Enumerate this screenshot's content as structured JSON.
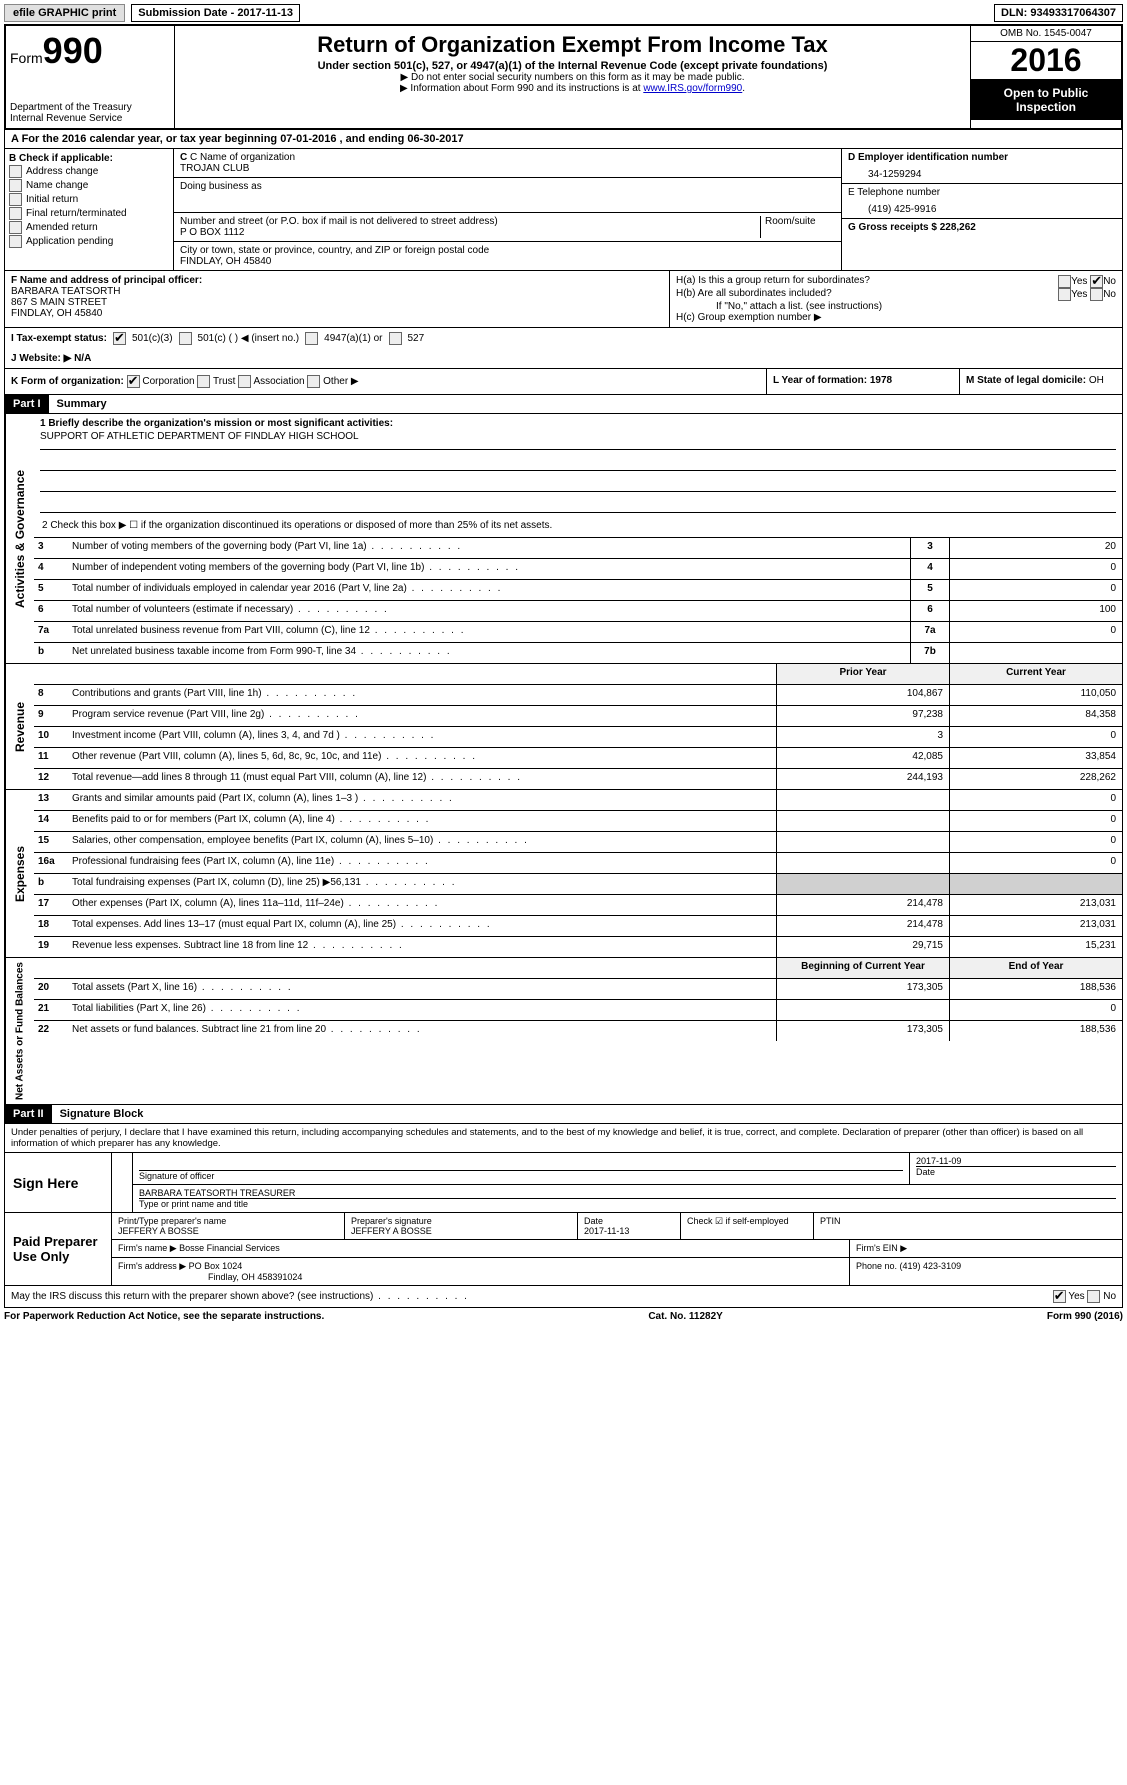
{
  "top": {
    "efile_label": "efile GRAPHIC print",
    "submission_label": "Submission Date - 2017-11-13",
    "dln": "DLN: 93493317064307"
  },
  "header": {
    "form_label": "Form",
    "form_number": "990",
    "dept": "Department of the Treasury",
    "irs": "Internal Revenue Service",
    "title": "Return of Organization Exempt From Income Tax",
    "subtitle": "Under section 501(c), 527, or 4947(a)(1) of the Internal Revenue Code (except private foundations)",
    "note1": "▶ Do not enter social security numbers on this form as it may be made public.",
    "note2_pre": "▶ Information about Form 990 and its instructions is at ",
    "note2_link": "www.IRS.gov/form990",
    "omb": "OMB No. 1545-0047",
    "year": "2016",
    "inspection1": "Open to Public",
    "inspection2": "Inspection"
  },
  "section_a": "A  For the 2016 calendar year, or tax year beginning 07-01-2016   , and ending 06-30-2017",
  "section_b": {
    "label": "B Check if applicable:",
    "items": [
      "Address change",
      "Name change",
      "Initial return",
      "Final return/terminated",
      "Amended return",
      "Application pending"
    ]
  },
  "section_c": {
    "name_label": "C Name of organization",
    "name": "TROJAN CLUB",
    "dba_label": "Doing business as",
    "street_label": "Number and street (or P.O. box if mail is not delivered to street address)",
    "room_label": "Room/suite",
    "street": "P O BOX 1112",
    "city_label": "City or town, state or province, country, and ZIP or foreign postal code",
    "city": "FINDLAY, OH 45840"
  },
  "section_d": {
    "ein_label": "D Employer identification number",
    "ein": "34-1259294",
    "phone_label": "E Telephone number",
    "phone": "(419) 425-9916",
    "gross_label": "G Gross receipts $ 228,262"
  },
  "section_f": {
    "label": "F  Name and address of principal officer:",
    "name": "BARBARA TEATSORTH",
    "street": "867 S MAIN STREET",
    "city": "FINDLAY, OH  45840"
  },
  "section_h": {
    "ha": "H(a)  Is this a group return for subordinates?",
    "hb": "H(b)  Are all subordinates included?",
    "hb_note": "If \"No,\" attach a list. (see instructions)",
    "hc": "H(c)  Group exemption number ▶"
  },
  "section_i": {
    "label": "I  Tax-exempt status:",
    "opts": [
      "501(c)(3)",
      "501(c) (  ) ◀ (insert no.)",
      "4947(a)(1) or",
      "527"
    ]
  },
  "section_j": "J  Website: ▶  N/A",
  "section_k": {
    "label": "K Form of organization:",
    "opts": [
      "Corporation",
      "Trust",
      "Association",
      "Other ▶"
    ]
  },
  "section_l": "L Year of formation: 1978",
  "section_m": {
    "label": "M State of legal domicile:",
    "val": "OH"
  },
  "part1": {
    "header": "Part I",
    "title": "Summary",
    "line1_label": "1 Briefly describe the organization's mission or most significant activities:",
    "mission": "SUPPORT OF ATHLETIC DEPARTMENT OF FINDLAY HIGH SCHOOL",
    "line2": "2  Check this box ▶ ☐  if the organization discontinued its operations or disposed of more than 25% of its net assets.",
    "governance_rows": [
      {
        "n": "3",
        "d": "Number of voting members of the governing body (Part VI, line 1a)",
        "rn": "3",
        "v": "20"
      },
      {
        "n": "4",
        "d": "Number of independent voting members of the governing body (Part VI, line 1b)",
        "rn": "4",
        "v": "0"
      },
      {
        "n": "5",
        "d": "Total number of individuals employed in calendar year 2016 (Part V, line 2a)",
        "rn": "5",
        "v": "0"
      },
      {
        "n": "6",
        "d": "Total number of volunteers (estimate if necessary)",
        "rn": "6",
        "v": "100"
      },
      {
        "n": "7a",
        "d": "Total unrelated business revenue from Part VIII, column (C), line 12",
        "rn": "7a",
        "v": "0"
      },
      {
        "n": "b",
        "d": "Net unrelated business taxable income from Form 990-T, line 34",
        "rn": "7b",
        "v": ""
      }
    ],
    "col_headers": {
      "prior": "Prior Year",
      "current": "Current Year"
    },
    "revenue_rows": [
      {
        "n": "8",
        "d": "Contributions and grants (Part VIII, line 1h)",
        "p": "104,867",
        "c": "110,050"
      },
      {
        "n": "9",
        "d": "Program service revenue (Part VIII, line 2g)",
        "p": "97,238",
        "c": "84,358"
      },
      {
        "n": "10",
        "d": "Investment income (Part VIII, column (A), lines 3, 4, and 7d )",
        "p": "3",
        "c": "0"
      },
      {
        "n": "11",
        "d": "Other revenue (Part VIII, column (A), lines 5, 6d, 8c, 9c, 10c, and 11e)",
        "p": "42,085",
        "c": "33,854"
      },
      {
        "n": "12",
        "d": "Total revenue—add lines 8 through 11 (must equal Part VIII, column (A), line 12)",
        "p": "244,193",
        "c": "228,262"
      }
    ],
    "expense_rows": [
      {
        "n": "13",
        "d": "Grants and similar amounts paid (Part IX, column (A), lines 1–3 )",
        "p": "",
        "c": "0"
      },
      {
        "n": "14",
        "d": "Benefits paid to or for members (Part IX, column (A), line 4)",
        "p": "",
        "c": "0"
      },
      {
        "n": "15",
        "d": "Salaries, other compensation, employee benefits (Part IX, column (A), lines 5–10)",
        "p": "",
        "c": "0"
      },
      {
        "n": "16a",
        "d": "Professional fundraising fees (Part IX, column (A), line 11e)",
        "p": "",
        "c": "0"
      },
      {
        "n": "b",
        "d": "Total fundraising expenses (Part IX, column (D), line 25) ▶56,131",
        "p": "grey",
        "c": "grey"
      },
      {
        "n": "17",
        "d": "Other expenses (Part IX, column (A), lines 11a–11d, 11f–24e)",
        "p": "214,478",
        "c": "213,031"
      },
      {
        "n": "18",
        "d": "Total expenses. Add lines 13–17 (must equal Part IX, column (A), line 25)",
        "p": "214,478",
        "c": "213,031"
      },
      {
        "n": "19",
        "d": "Revenue less expenses. Subtract line 18 from line 12",
        "p": "29,715",
        "c": "15,231"
      }
    ],
    "net_headers": {
      "begin": "Beginning of Current Year",
      "end": "End of Year"
    },
    "net_rows": [
      {
        "n": "20",
        "d": "Total assets (Part X, line 16)",
        "p": "173,305",
        "c": "188,536"
      },
      {
        "n": "21",
        "d": "Total liabilities (Part X, line 26)",
        "p": "",
        "c": "0"
      },
      {
        "n": "22",
        "d": "Net assets or fund balances. Subtract line 21 from line 20",
        "p": "173,305",
        "c": "188,536"
      }
    ]
  },
  "side_labels": {
    "gov": "Activities & Governance",
    "rev": "Revenue",
    "exp": "Expenses",
    "net": "Net Assets or Fund Balances"
  },
  "part2": {
    "header": "Part II",
    "title": "Signature Block",
    "perjury": "Under penalties of perjury, I declare that I have examined this return, including accompanying schedules and statements, and to the best of my knowledge and belief, it is true, correct, and complete. Declaration of preparer (other than officer) is based on all information of which preparer has any knowledge.",
    "sign_here": "Sign Here",
    "sig_officer": "Signature of officer",
    "sig_date": "2017-11-09",
    "date_label": "Date",
    "officer_name": "BARBARA TEATSORTH TREASURER",
    "type_label": "Type or print name and title",
    "paid_prep": "Paid Preparer Use Only",
    "prep_name_label": "Print/Type preparer's name",
    "prep_name": "JEFFERY A BOSSE",
    "prep_sig_label": "Preparer's signature",
    "prep_sig": "JEFFERY A BOSSE",
    "prep_date_label": "Date",
    "prep_date": "2017-11-13",
    "self_emp": "Check ☑ if self-employed",
    "ptin": "PTIN",
    "firm_name_label": "Firm's name    ▶",
    "firm_name": "Bosse Financial Services",
    "firm_ein": "Firm's EIN ▶",
    "firm_addr_label": "Firm's address ▶",
    "firm_addr": "PO Box 1024",
    "firm_city": "Findlay, OH  458391024",
    "firm_phone": "Phone no. (419) 423-3109",
    "discuss": "May the IRS discuss this return with the preparer shown above? (see instructions)"
  },
  "footer": {
    "left": "For Paperwork Reduction Act Notice, see the separate instructions.",
    "center": "Cat. No. 11282Y",
    "right": "Form 990 (2016)"
  }
}
